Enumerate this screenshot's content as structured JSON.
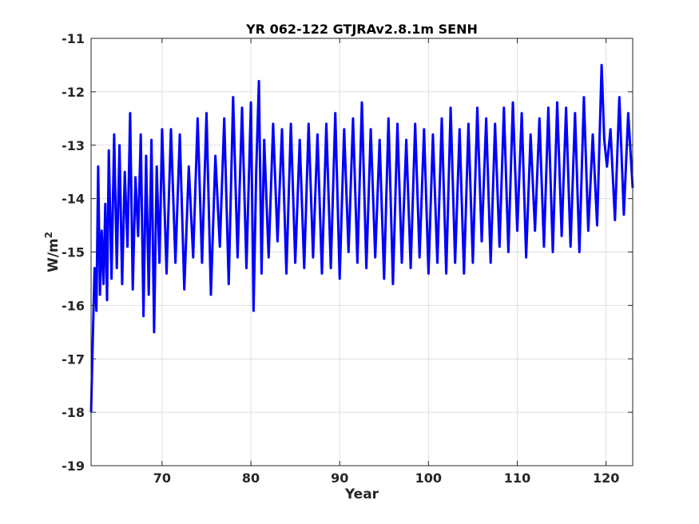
{
  "chart_data": {
    "type": "line",
    "title": "YR 062-122 GTJRAv2.8.1m SENH",
    "xlabel": "Year",
    "ylabel_base": "W/m",
    "ylabel_sup": "2",
    "xlim": [
      62,
      123
    ],
    "ylim": [
      -19,
      -11
    ],
    "xticks": [
      70,
      80,
      90,
      100,
      110,
      120
    ],
    "yticks": [
      -19,
      -18,
      -17,
      -16,
      -15,
      -14,
      -13,
      -12,
      -11
    ],
    "xtick_labels": [
      "70",
      "80",
      "90",
      "100",
      "110",
      "120"
    ],
    "ytick_labels": [
      "-19",
      "-18",
      "-17",
      "-16",
      "-15",
      "-14",
      "-13",
      "-12",
      "-11"
    ],
    "grid": true,
    "line_color": "#0000ff",
    "series": [
      {
        "x": [
          62.0,
          62.2,
          62.4,
          62.6,
          62.8,
          63.0,
          63.2,
          63.4,
          63.6,
          63.8,
          64.0,
          64.3,
          64.6,
          64.9,
          65.2,
          65.5,
          65.8,
          66.1,
          66.4,
          66.7,
          67.0,
          67.3,
          67.6,
          67.9,
          68.2,
          68.5,
          68.8,
          69.1,
          69.4,
          69.7,
          70.0,
          70.5,
          71.0,
          71.5,
          72.0,
          72.5,
          73.0,
          73.5,
          74.0,
          74.5,
          75.0,
          75.5,
          76.0,
          76.5,
          77.0,
          77.5,
          78.0,
          78.5,
          79.0,
          79.5,
          80.0,
          80.3,
          80.6,
          80.9,
          81.2,
          81.5,
          82.0,
          82.5,
          83.0,
          83.5,
          84.0,
          84.5,
          85.0,
          85.5,
          86.0,
          86.5,
          87.0,
          87.5,
          88.0,
          88.5,
          89.0,
          89.5,
          90.0,
          90.5,
          91.0,
          91.5,
          92.0,
          92.5,
          93.0,
          93.5,
          94.0,
          94.5,
          95.0,
          95.5,
          96.0,
          96.5,
          97.0,
          97.5,
          98.0,
          98.5,
          99.0,
          99.5,
          100.0,
          100.5,
          101.0,
          101.5,
          102.0,
          102.5,
          103.0,
          103.5,
          104.0,
          104.5,
          105.0,
          105.5,
          106.0,
          106.5,
          107.0,
          107.5,
          108.0,
          108.5,
          109.0,
          109.5,
          110.0,
          110.5,
          111.0,
          111.5,
          112.0,
          112.5,
          113.0,
          113.5,
          114.0,
          114.5,
          115.0,
          115.5,
          116.0,
          116.5,
          117.0,
          117.5,
          118.0,
          118.5,
          119.0,
          119.5,
          119.8,
          120.1,
          120.5,
          121.0,
          121.5,
          122.0,
          122.5,
          123.0
        ],
        "y": [
          -18.0,
          -16.6,
          -15.3,
          -16.1,
          -13.4,
          -15.8,
          -14.6,
          -15.6,
          -14.1,
          -15.9,
          -13.1,
          -15.5,
          -12.8,
          -15.3,
          -13.0,
          -15.6,
          -13.5,
          -14.9,
          -12.4,
          -15.7,
          -13.6,
          -14.7,
          -12.8,
          -16.2,
          -13.2,
          -15.8,
          -12.9,
          -16.5,
          -13.4,
          -15.2,
          -12.7,
          -15.4,
          -12.7,
          -15.2,
          -12.8,
          -15.7,
          -13.4,
          -15.1,
          -12.5,
          -15.2,
          -12.4,
          -15.8,
          -13.2,
          -14.9,
          -12.5,
          -15.6,
          -12.1,
          -15.1,
          -12.3,
          -15.3,
          -12.2,
          -16.1,
          -13.5,
          -11.8,
          -15.4,
          -12.9,
          -15.1,
          -12.6,
          -14.8,
          -12.7,
          -15.4,
          -12.6,
          -15.2,
          -12.9,
          -15.3,
          -12.6,
          -15.1,
          -12.8,
          -15.4,
          -12.6,
          -15.3,
          -12.4,
          -15.5,
          -12.7,
          -15.0,
          -12.5,
          -15.2,
          -12.2,
          -15.3,
          -12.7,
          -15.1,
          -12.9,
          -15.5,
          -12.5,
          -15.6,
          -12.6,
          -15.2,
          -12.9,
          -15.3,
          -12.6,
          -15.1,
          -12.7,
          -15.4,
          -12.8,
          -15.2,
          -12.5,
          -15.4,
          -12.3,
          -15.2,
          -12.7,
          -15.4,
          -12.6,
          -15.2,
          -12.3,
          -14.8,
          -12.5,
          -15.2,
          -12.6,
          -14.9,
          -12.3,
          -15.0,
          -12.2,
          -14.6,
          -12.4,
          -15.1,
          -12.8,
          -14.6,
          -12.5,
          -14.9,
          -12.3,
          -15.0,
          -12.2,
          -14.7,
          -12.3,
          -14.9,
          -12.4,
          -15.0,
          -12.1,
          -14.6,
          -12.8,
          -14.5,
          -11.5,
          -12.9,
          -13.4,
          -12.7,
          -14.4,
          -12.1,
          -14.3,
          -12.4,
          -13.8
        ]
      }
    ]
  }
}
